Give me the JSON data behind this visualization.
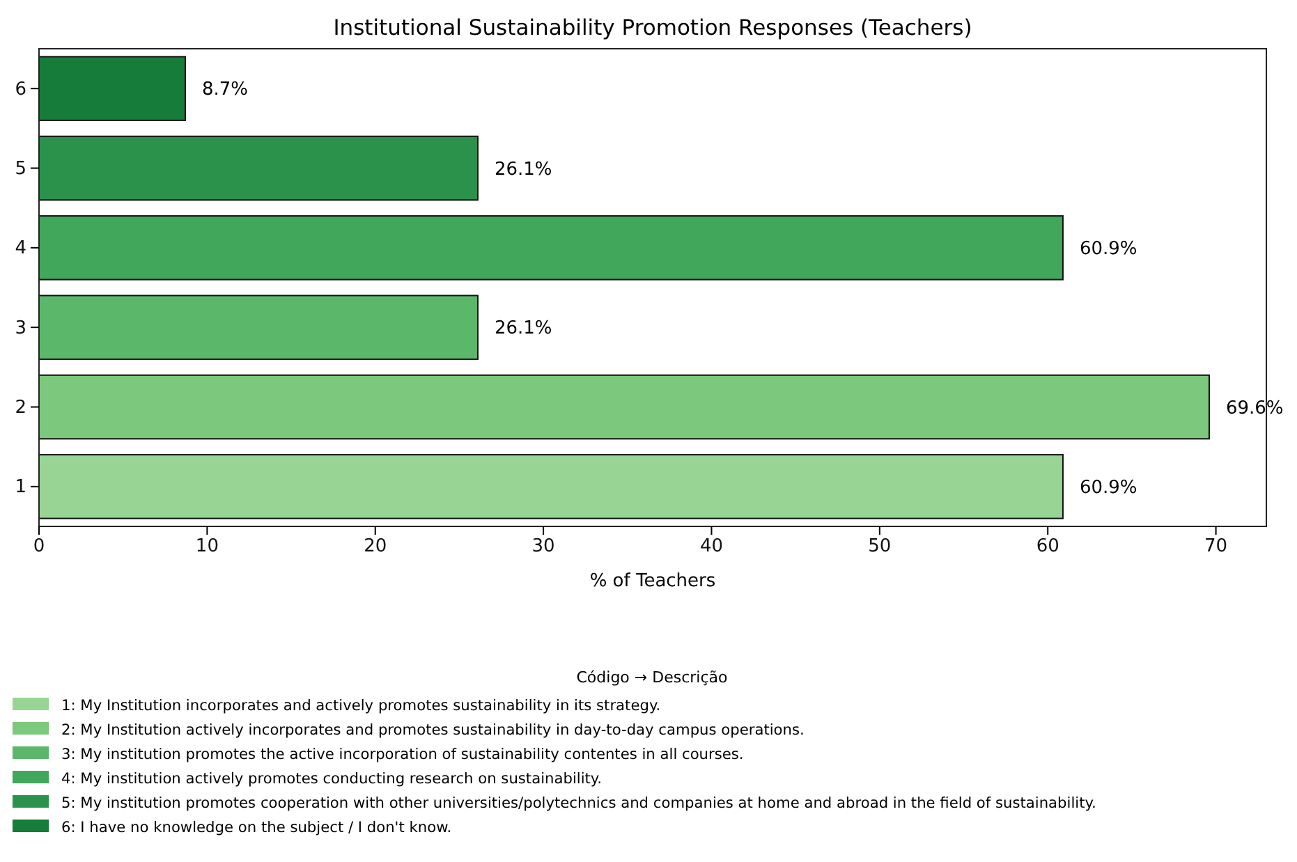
{
  "chart_data": {
    "type": "bar",
    "orientation": "horizontal",
    "title": "Institutional Sustainability Promotion Responses (Teachers)",
    "xlabel": "% of Teachers",
    "legend_title": "Código → Descrição",
    "legend": "bottom",
    "categories": [
      "6",
      "5",
      "4",
      "3",
      "2",
      "1"
    ],
    "xlim": [
      0,
      73
    ],
    "xticks": [
      0,
      10,
      20,
      30,
      40,
      50,
      60,
      70
    ],
    "series": [
      {
        "name": "1: My Institution incorporates and actively promotes sustainability in its strategy.",
        "color": "#98d594",
        "values": [
          null,
          null,
          null,
          null,
          null,
          60.9
        ],
        "value_labels": [
          null,
          null,
          null,
          null,
          null,
          "60.9%"
        ]
      },
      {
        "name": "2: My Institution actively incorporates and promotes sustainability in day-to-day campus operations.",
        "color": "#7cc87c",
        "values": [
          null,
          null,
          null,
          null,
          69.6,
          null
        ],
        "value_labels": [
          null,
          null,
          null,
          null,
          "69.6%",
          null
        ]
      },
      {
        "name": "3: My institution promotes the active incorporation of sustainability contentes in all courses.",
        "color": "#5bb86b",
        "values": [
          null,
          null,
          null,
          26.1,
          null,
          null
        ],
        "value_labels": [
          null,
          null,
          null,
          "26.1%",
          null,
          null
        ]
      },
      {
        "name": "4: My institution actively promotes conducting research on sustainability.",
        "color": "#40a75b",
        "values": [
          null,
          null,
          60.9,
          null,
          null,
          null
        ],
        "value_labels": [
          null,
          null,
          "60.9%",
          null,
          null,
          null
        ]
      },
      {
        "name": "5: My institution promotes cooperation with other universities/polytechnics and companies at home and abroad in the field of sustainability.",
        "color": "#2b924c",
        "values": [
          null,
          26.1,
          null,
          null,
          null,
          null
        ],
        "value_labels": [
          null,
          "26.1%",
          null,
          null,
          null,
          null
        ]
      },
      {
        "name": "6: I have no knowledge on the subject / I don't know.",
        "color": "#167c3a",
        "values": [
          8.7,
          null,
          null,
          null,
          null,
          null
        ],
        "value_labels": [
          "8.7%",
          null,
          null,
          null,
          null,
          null
        ]
      }
    ]
  }
}
